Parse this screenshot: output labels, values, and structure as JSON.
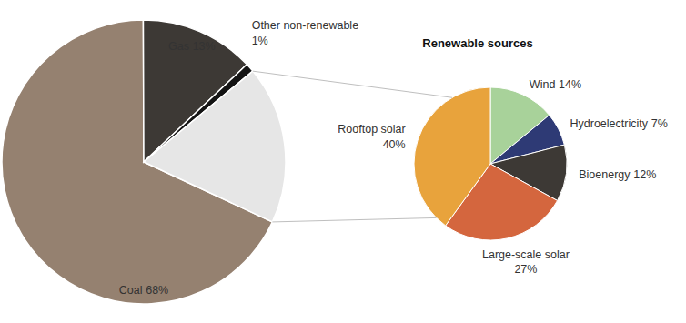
{
  "chart_data": [
    {
      "type": "pie",
      "categories": [
        "Coal",
        "Gas",
        "Other non-renewable",
        null
      ],
      "values": [
        68,
        13,
        1,
        18
      ],
      "value_labels": [
        "68%",
        "13%",
        "1%",
        null
      ],
      "colors": [
        "#958170",
        "#3d3935",
        "#141414",
        "#e6e6e6"
      ],
      "data_labels": true
    },
    {
      "type": "pie",
      "title": "Renewable sources",
      "categories": [
        "Wind",
        "Hydroelectricity",
        "Bioenergy",
        "Large-scale solar",
        "Rooftop solar"
      ],
      "values": [
        14,
        7,
        12,
        27,
        40
      ],
      "value_labels": [
        "14%",
        "7%",
        "12%",
        "27%",
        "40%"
      ],
      "colors": [
        "#a8d29a",
        "#2e3a75",
        "#3d3935",
        "#d4663e",
        "#e8a33c"
      ],
      "data_labels": true
    }
  ]
}
